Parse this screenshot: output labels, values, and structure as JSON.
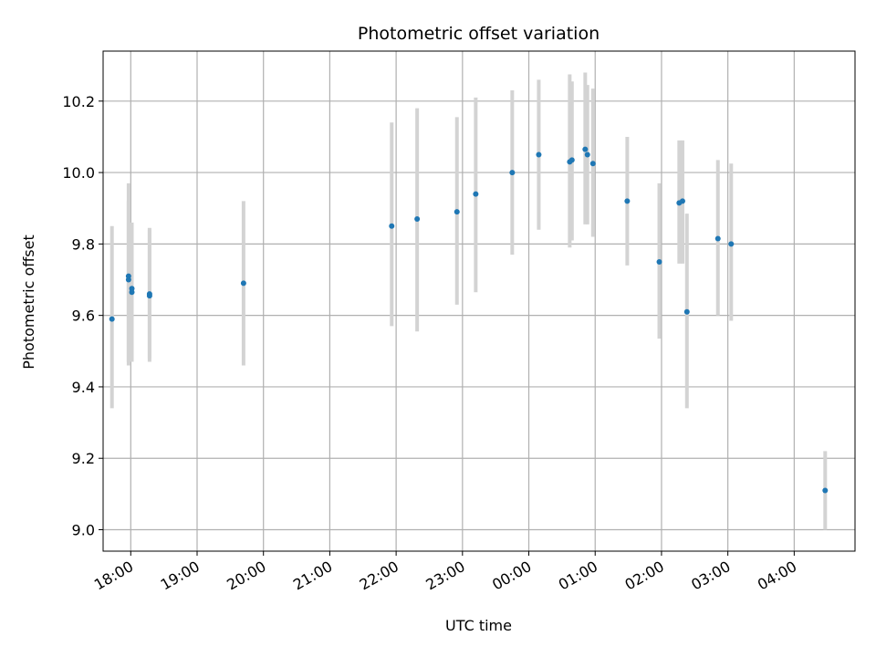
{
  "chart_data": {
    "type": "scatter",
    "title": "Photometric offset variation",
    "xlabel": "UTC time",
    "ylabel": "Photometric offset",
    "xlim": [
      "17:35",
      "04:55"
    ],
    "ylim": [
      8.94,
      10.34
    ],
    "x_ticks": [
      "18:00",
      "19:00",
      "20:00",
      "21:00",
      "22:00",
      "23:00",
      "00:00",
      "01:00",
      "02:00",
      "03:00",
      "04:00"
    ],
    "y_ticks": [
      "9.0",
      "9.2",
      "9.4",
      "9.6",
      "9.8",
      "10.0",
      "10.2"
    ],
    "grid": true,
    "colors": {
      "point": "#1f77b4",
      "errorbar": "#d3d3d3",
      "grid": "#b0b0b0"
    },
    "points": [
      {
        "x": "17:43",
        "y": 9.59,
        "err_low": 9.34,
        "err_high": 9.85
      },
      {
        "x": "17:58",
        "y": 9.71,
        "err_low": 9.46,
        "err_high": 9.97
      },
      {
        "x": "17:58",
        "y": 9.7,
        "err_low": 9.47,
        "err_high": 9.92
      },
      {
        "x": "18:01",
        "y": 9.675,
        "err_low": 9.47,
        "err_high": 9.86
      },
      {
        "x": "18:01",
        "y": 9.665,
        "err_low": 9.49,
        "err_high": 9.85
      },
      {
        "x": "18:17",
        "y": 9.66,
        "err_low": 9.47,
        "err_high": 9.845
      },
      {
        "x": "18:17",
        "y": 9.655,
        "err_low": 9.48,
        "err_high": 9.84
      },
      {
        "x": "19:42",
        "y": 9.69,
        "err_low": 9.46,
        "err_high": 9.92
      },
      {
        "x": "21:56",
        "y": 9.85,
        "err_low": 9.57,
        "err_high": 10.14
      },
      {
        "x": "22:19",
        "y": 9.87,
        "err_low": 9.555,
        "err_high": 10.18
      },
      {
        "x": "22:55",
        "y": 9.89,
        "err_low": 9.63,
        "err_high": 10.155
      },
      {
        "x": "23:12",
        "y": 9.94,
        "err_low": 9.665,
        "err_high": 10.21
      },
      {
        "x": "23:45",
        "y": 10.0,
        "err_low": 9.77,
        "err_high": 10.23
      },
      {
        "x": "00:09",
        "y": 10.05,
        "err_low": 9.84,
        "err_high": 10.26
      },
      {
        "x": "00:37",
        "y": 10.03,
        "err_low": 9.79,
        "err_high": 10.275
      },
      {
        "x": "00:39",
        "y": 10.035,
        "err_low": 9.81,
        "err_high": 10.255
      },
      {
        "x": "00:51",
        "y": 10.065,
        "err_low": 9.855,
        "err_high": 10.28
      },
      {
        "x": "00:53",
        "y": 10.05,
        "err_low": 9.855,
        "err_high": 10.245
      },
      {
        "x": "00:58",
        "y": 10.025,
        "err_low": 9.82,
        "err_high": 10.235
      },
      {
        "x": "01:29",
        "y": 9.92,
        "err_low": 9.74,
        "err_high": 10.1
      },
      {
        "x": "01:58",
        "y": 9.75,
        "err_low": 9.535,
        "err_high": 9.97
      },
      {
        "x": "02:16",
        "y": 9.915,
        "err_low": 9.745,
        "err_high": 10.09
      },
      {
        "x": "02:19",
        "y": 9.92,
        "err_low": 9.745,
        "err_high": 10.09
      },
      {
        "x": "02:23",
        "y": 9.61,
        "err_low": 9.34,
        "err_high": 9.885
      },
      {
        "x": "02:51",
        "y": 9.815,
        "err_low": 9.6,
        "err_high": 10.035
      },
      {
        "x": "03:03",
        "y": 9.8,
        "err_low": 9.585,
        "err_high": 10.025
      },
      {
        "x": "04:28",
        "y": 9.11,
        "err_low": 9.0,
        "err_high": 9.22
      }
    ]
  }
}
